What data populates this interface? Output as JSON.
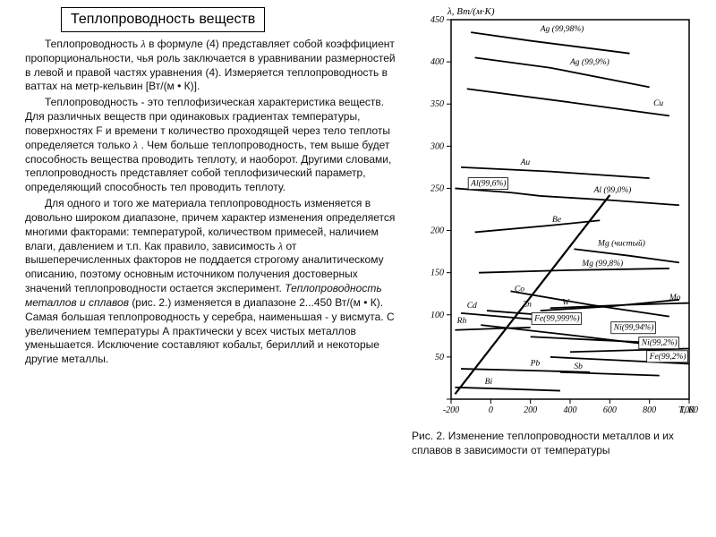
{
  "title": "Теплопроводность веществ",
  "paragraphs": {
    "p1a": "Теплопроводность ",
    "p1b": " в формуле (4) представляет собой коэффициент пропорциональности, чья роль заключается в уравнивании размерностей в левой и правой частях уравнения (4). Измеряется теплопроводность в ваттах на метр-кельвин [Вт/(м • К)].",
    "p2a": "Теплопроводность - это теплофизическая характеристика веществ. Для различных веществ при одинаковых градиентах температуры, поверхностях F и времени т количество проходящей через тело теплоты определяется только ",
    "p2b": " . Чем больше теплопроводность, тем выше будет способность вещества проводить теплоту, и наоборот. Другими словами, теплопроводность представляет собой теплофизический параметр, определяющий способность тел проводить теплоту.",
    "p3a": "Для одного и того же материала теплопроводность изменяется в довольно широком диапазоне, причем характер изменения определяется многими факторами: температурой, количеством примесей, наличием влаги, давлением и т.п. Как правило, зависимость ",
    "p3b": " от вышеперечисленных факторов не поддается строгому аналитическому описанию, поэтому основным источником получения достоверных значений теплопроводности остается эксперимент. ",
    "p3italic": "Теплопроводность металлов и сплавов",
    "p3c": " (рис. 2.) изменяется в диапазоне 2...450 Вт/(м • К). Самая большая теплопроводность у серебра, наименьшая - у висмута. С увеличением температуры А практически у всех чистых металлов уменьшается. Исключение составляют кобальт, бериллий и некоторые другие металлы."
  },
  "lambda_glyph": "λ",
  "caption": "Рис. 2. Изменение теплопроводности металлов и их сплавов в зависимости от температуры",
  "chart": {
    "type": "line",
    "background_color": "#ffffff",
    "axis_color": "#000000",
    "frame_stroke_width": 1.5,
    "line_stroke_width": 1.8,
    "tick_font_size": 10,
    "label_font_family": "serif",
    "label_font_style": "italic",
    "y_axis_label": "λ, Вт/(м·К)",
    "x_axis_label": "T, К",
    "xlim": [
      -200,
      1000
    ],
    "ylim": [
      0,
      450
    ],
    "x_ticks": [
      -200,
      0,
      200,
      400,
      600,
      800,
      1000
    ],
    "y_ticks": [
      0,
      50,
      100,
      150,
      200,
      250,
      300,
      350,
      400,
      450
    ],
    "series": [
      {
        "name": "Ag (99,98%)",
        "label": "Ag (99,98%)",
        "points": [
          [
            -100,
            435
          ],
          [
            200,
            425
          ],
          [
            700,
            410
          ]
        ],
        "label_xy": [
          250,
          436
        ]
      },
      {
        "name": "Ag (99,9%)",
        "label": "Ag (99,9%)",
        "points": [
          [
            -80,
            405
          ],
          [
            300,
            393
          ],
          [
            800,
            370
          ]
        ],
        "label_xy": [
          400,
          397
        ]
      },
      {
        "name": "Cu",
        "label": "Cu",
        "points": [
          [
            -120,
            368
          ],
          [
            400,
            352
          ],
          [
            900,
            336
          ]
        ],
        "label_xy": [
          820,
          348
        ]
      },
      {
        "name": "Au",
        "label": "Au",
        "points": [
          [
            -150,
            275
          ],
          [
            300,
            270
          ],
          [
            800,
            262
          ]
        ],
        "label_xy": [
          150,
          278
        ]
      },
      {
        "name": "Al (99,6%)",
        "label": "Al(99,6%)",
        "points": [
          [
            -180,
            250
          ],
          [
            100,
            245
          ],
          [
            250,
            241
          ]
        ],
        "label_xy": [
          -100,
          253
        ],
        "boxed": true
      },
      {
        "name": "Al (99,0%)",
        "label": "Al (99,0%)",
        "points": [
          [
            250,
            241
          ],
          [
            600,
            236
          ],
          [
            950,
            230
          ]
        ],
        "label_xy": [
          520,
          245
        ]
      },
      {
        "name": "Be",
        "label": "Be",
        "points": [
          [
            -80,
            198
          ],
          [
            300,
            206
          ],
          [
            550,
            212
          ]
        ],
        "label_xy": [
          310,
          210
        ]
      },
      {
        "name": "Mg (чистый)",
        "label": "Mg (чистый)",
        "points": [
          [
            420,
            178
          ],
          [
            700,
            170
          ],
          [
            950,
            162
          ]
        ],
        "label_xy": [
          540,
          182
        ]
      },
      {
        "name": "Mg (99,8%)",
        "label": "Mg (99,8%)",
        "points": [
          [
            -60,
            150
          ],
          [
            400,
            153
          ],
          [
            900,
            155
          ]
        ],
        "label_xy": [
          460,
          158
        ]
      },
      {
        "name": "Co",
        "label": "Co",
        "points": [
          [
            100,
            128
          ],
          [
            500,
            112
          ],
          [
            900,
            98
          ]
        ],
        "label_xy": [
          120,
          128
        ]
      },
      {
        "name": "Mo",
        "label": "Mo",
        "points": [
          [
            300,
            108
          ],
          [
            700,
            112
          ],
          [
            1000,
            114
          ]
        ],
        "label_xy": [
          900,
          118
        ]
      },
      {
        "name": "Cd",
        "label": "Cd",
        "points": [
          [
            -150,
            102
          ],
          [
            100,
            97
          ],
          [
            250,
            94
          ]
        ],
        "label_xy": [
          -120,
          108
        ]
      },
      {
        "name": "Zn",
        "label": "Zn",
        "points": [
          [
            -20,
            105
          ],
          [
            250,
            100
          ],
          [
            400,
            97
          ]
        ],
        "label_xy": [
          160,
          110
        ]
      },
      {
        "name": "W",
        "label": "W",
        "points": [
          [
            250,
            105
          ],
          [
            600,
            110
          ],
          [
            950,
            118
          ]
        ],
        "label_xy": [
          360,
          112
        ]
      },
      {
        "name": "Rh",
        "label": "Rh",
        "points": [
          [
            -180,
            82
          ],
          [
            50,
            84
          ],
          [
            200,
            85
          ]
        ],
        "label_xy": [
          -170,
          90
        ]
      },
      {
        "name": "Fe (99,999%)",
        "label": "Fe(99,999%)",
        "points": [
          [
            -50,
            88
          ],
          [
            400,
            76
          ],
          [
            900,
            62
          ]
        ],
        "label_xy": [
          220,
          93
        ],
        "boxed": true
      },
      {
        "name": "Ni (99,94%)",
        "label": "Ni(99,94%)",
        "points": [
          [
            200,
            74
          ],
          [
            550,
            70
          ],
          [
            900,
            66
          ]
        ],
        "label_xy": [
          620,
          82
        ],
        "boxed": true
      },
      {
        "name": "Ni (99,2%)",
        "label": "Ni(99,2%)",
        "points": [
          [
            400,
            56
          ],
          [
            700,
            58
          ],
          [
            1000,
            60
          ]
        ],
        "label_xy": [
          760,
          64
        ],
        "boxed": true
      },
      {
        "name": "Fe (99,2%)",
        "label": "Fe(99,2%)",
        "points": [
          [
            300,
            50
          ],
          [
            650,
            46
          ],
          [
            1000,
            42
          ]
        ],
        "label_xy": [
          800,
          48
        ],
        "boxed": true
      },
      {
        "name": "Pb",
        "label": "Pb",
        "points": [
          [
            -150,
            36
          ],
          [
            200,
            34
          ],
          [
            500,
            32
          ]
        ],
        "label_xy": [
          200,
          40
        ]
      },
      {
        "name": "Sb",
        "label": "Sb",
        "points": [
          [
            350,
            32
          ],
          [
            600,
            30
          ],
          [
            850,
            28
          ]
        ],
        "label_xy": [
          420,
          36
        ]
      },
      {
        "name": "Bi",
        "label": "Bi",
        "points": [
          [
            -180,
            14
          ],
          [
            100,
            12
          ],
          [
            350,
            10
          ]
        ],
        "label_xy": [
          -30,
          18
        ]
      }
    ],
    "diagonal_guide": {
      "points": [
        [
          -180,
          6
        ],
        [
          600,
          242
        ]
      ],
      "stroke_width": 2.2
    }
  }
}
